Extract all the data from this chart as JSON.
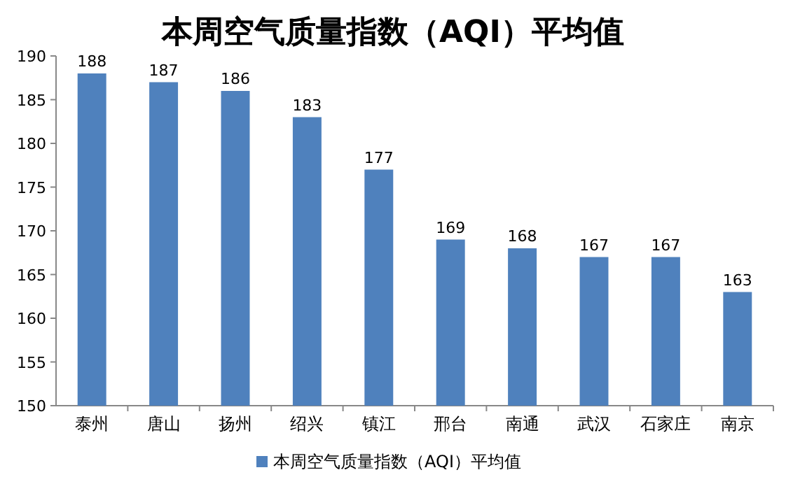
{
  "chart_data": {
    "type": "bar",
    "title": "本周空气质量指数（AQI）平均值",
    "categories": [
      "泰州",
      "唐山",
      "扬州",
      "绍兴",
      "镇江",
      "邢台",
      "南通",
      "武汉",
      "石家庄",
      "南京"
    ],
    "series": [
      {
        "name": "本周空气质量指数（AQI）平均值",
        "color": "#4f81bd",
        "values": [
          188,
          187,
          186,
          183,
          177,
          169,
          168,
          167,
          167,
          163
        ]
      }
    ],
    "ylim": [
      150,
      190
    ],
    "yticks": [
      150,
      155,
      160,
      165,
      170,
      175,
      180,
      185,
      190
    ],
    "data_labels": true,
    "legend": "bottom",
    "grid": false
  }
}
